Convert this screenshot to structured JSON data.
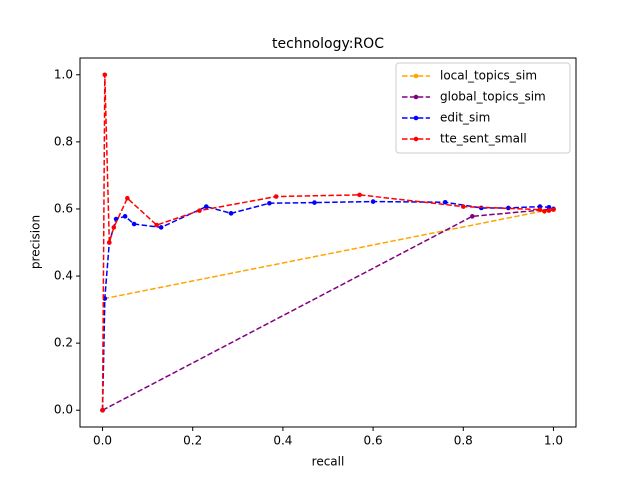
{
  "chart_data": {
    "type": "line",
    "title": "technology:ROC",
    "x_label": "recall",
    "y_label": "precision",
    "xlim": [
      -0.05,
      1.05
    ],
    "ylim": [
      -0.05,
      1.05
    ],
    "xticks": [
      {
        "value": 0,
        "label": "0.0"
      },
      0.2,
      0.4,
      0.6,
      0.8,
      {
        "value": 1,
        "label": "1.0"
      }
    ],
    "yticks": [
      {
        "value": 0,
        "label": "0.0"
      },
      0.2,
      0.4,
      0.6,
      0.8,
      {
        "value": 1,
        "label": "1.0"
      }
    ],
    "legend": "upper right",
    "line_style": "dashed",
    "series": [
      {
        "name": "local_topics_sim",
        "color": "#ffa500",
        "x": [
          0,
          0.005,
          1.0
        ],
        "values": [
          0,
          0.333,
          0.6
        ]
      },
      {
        "name": "global_topics_sim",
        "color": "#800080",
        "x": [
          0,
          0.82,
          1.0
        ],
        "values": [
          0,
          0.578,
          0.6
        ]
      },
      {
        "name": "edit_sim",
        "color": "#0000ff",
        "x": [
          0,
          0.005,
          0.015,
          0.03,
          0.05,
          0.07,
          0.13,
          0.23,
          0.285,
          0.37,
          0.47,
          0.6,
          0.76,
          0.84,
          0.9,
          0.97,
          0.99,
          1.0
        ],
        "values": [
          0,
          0.333,
          0.5,
          0.57,
          0.578,
          0.555,
          0.545,
          0.607,
          0.587,
          0.617,
          0.619,
          0.622,
          0.62,
          0.603,
          0.603,
          0.607,
          0.605,
          0.6
        ]
      },
      {
        "name": "tte_sent_small",
        "color": "#ff0000",
        "x": [
          0,
          0.005,
          0.015,
          0.025,
          0.055,
          0.12,
          0.215,
          0.385,
          0.57,
          0.8,
          0.97,
          0.98,
          0.99,
          1.0
        ],
        "values": [
          0,
          1.0,
          0.5,
          0.545,
          0.632,
          0.552,
          0.595,
          0.637,
          0.642,
          0.607,
          0.598,
          0.593,
          0.595,
          0.598
        ]
      }
    ]
  }
}
